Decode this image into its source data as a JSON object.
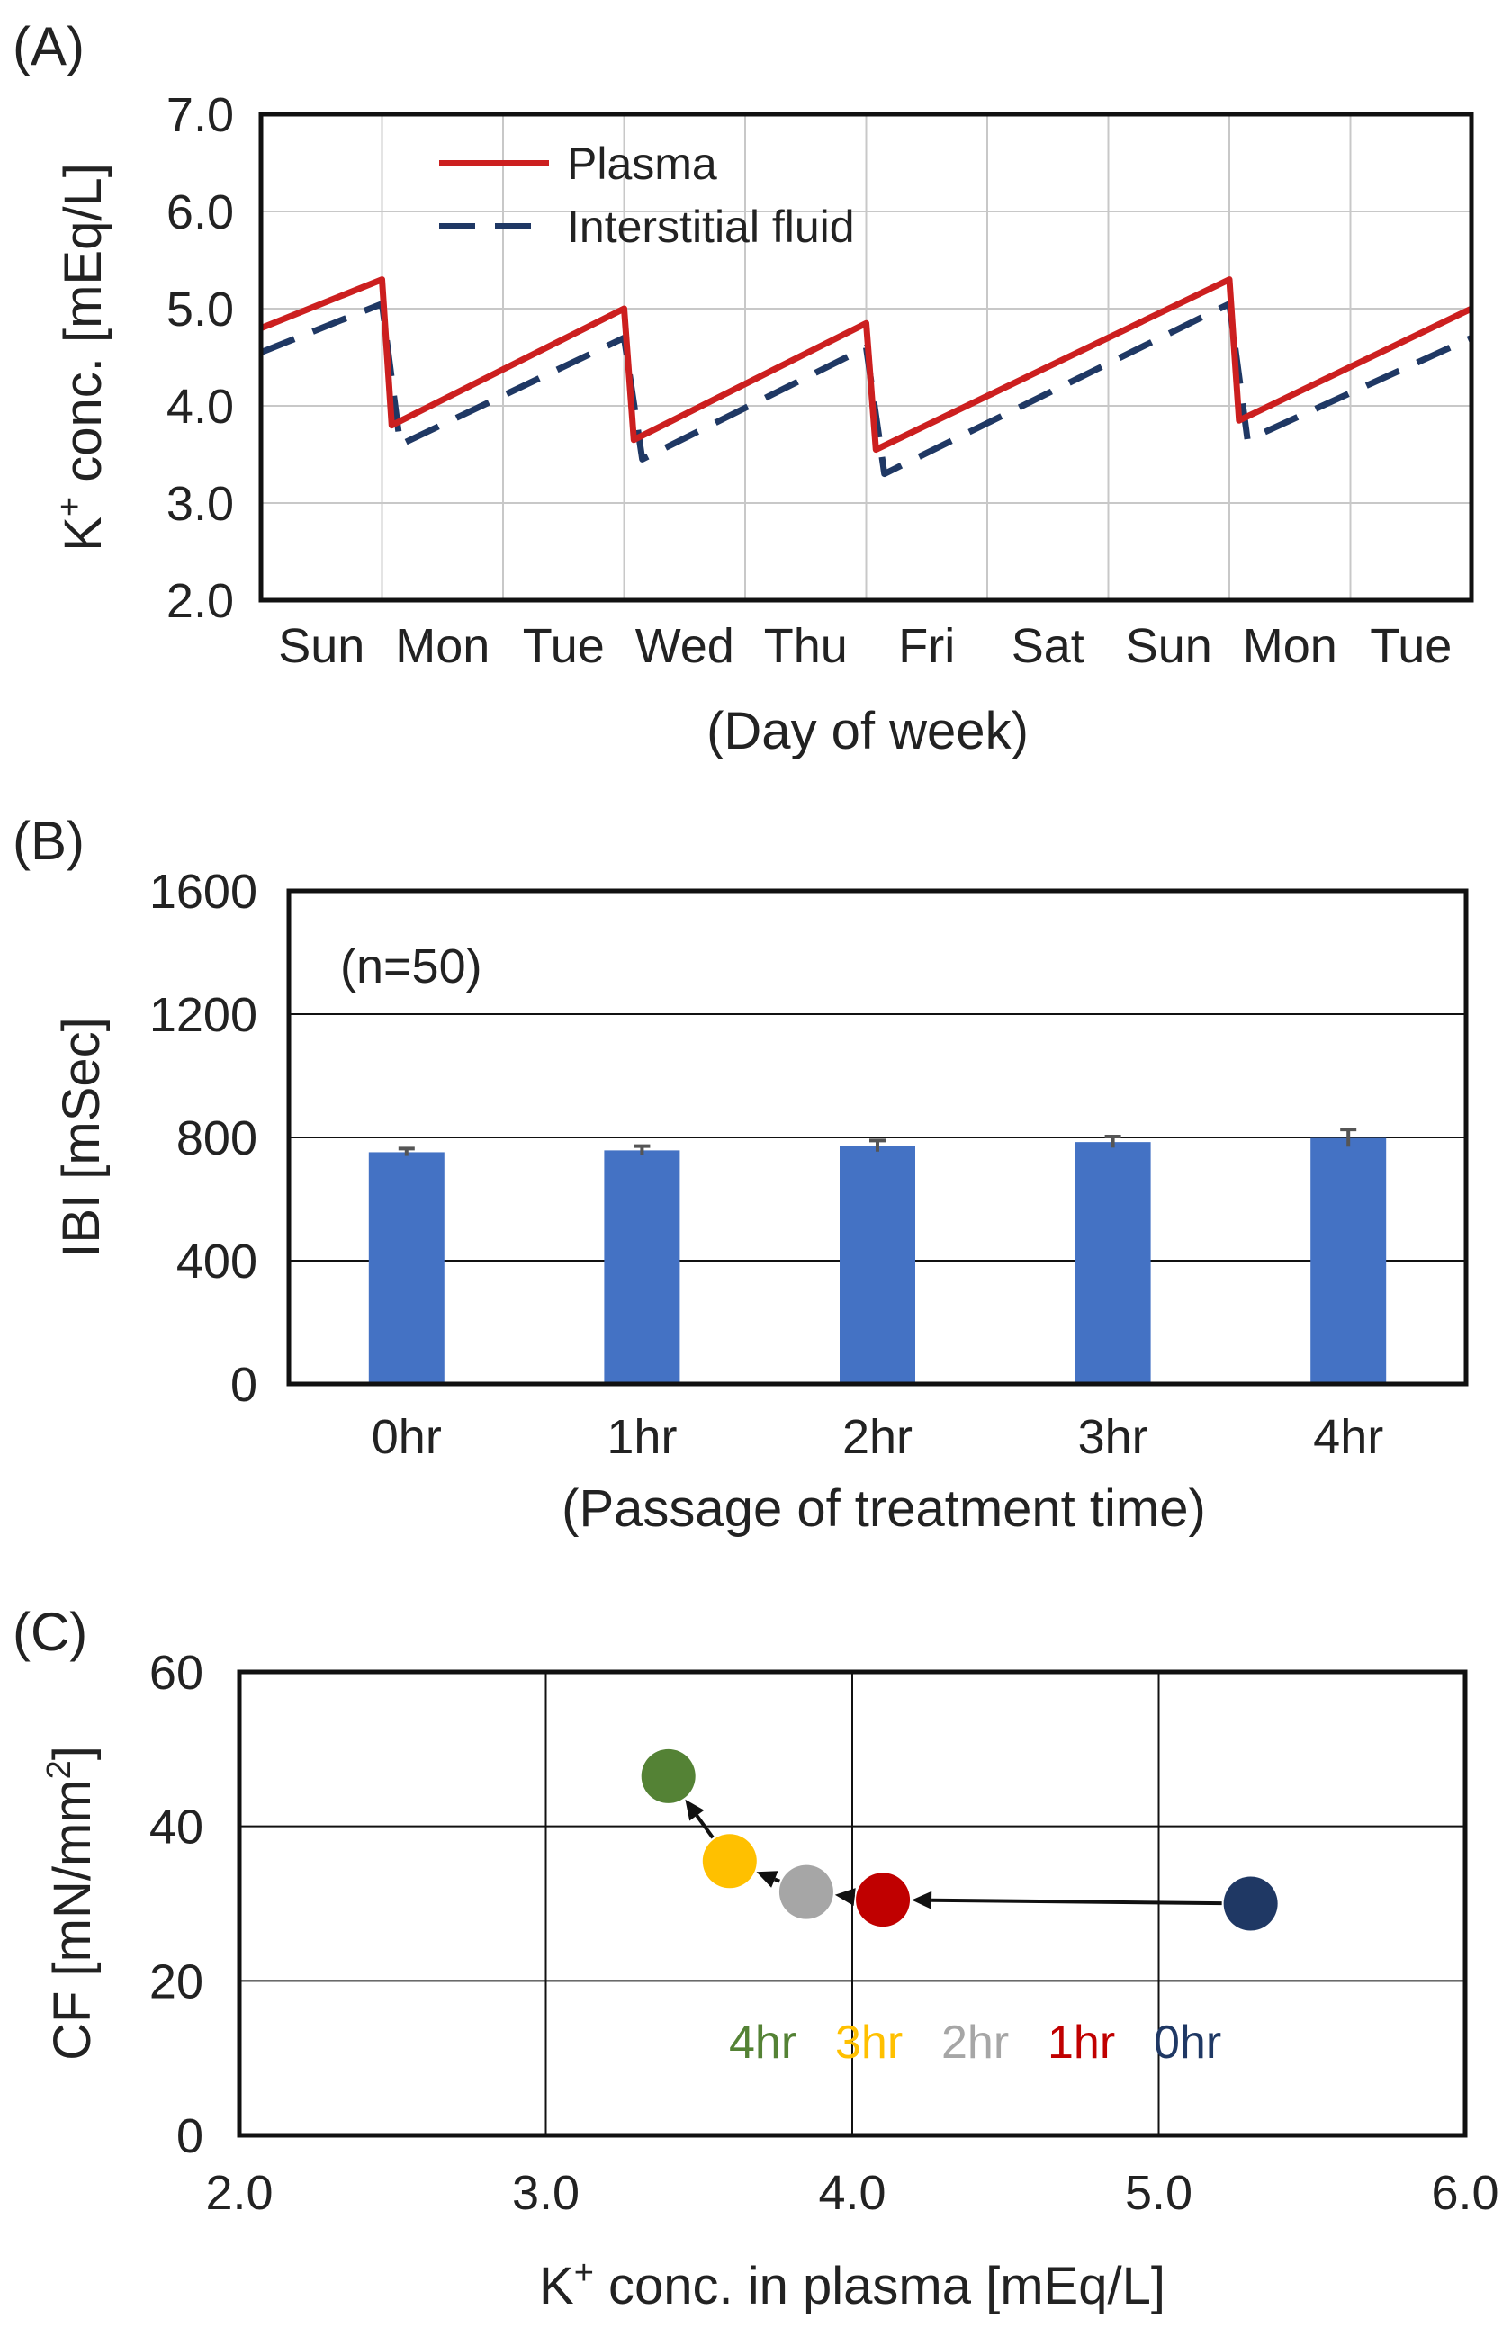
{
  "colors": {
    "plasma": "#cc1f1f",
    "interstitial": "#1f3864",
    "bar": "#4472c4",
    "error_bar": "#555555",
    "grid": "#c8c8c8",
    "frame": "#111111",
    "pt_0hr": "#1f3864",
    "pt_1hr": "#c00000",
    "pt_2hr": "#a6a6a6",
    "pt_3hr": "#ffc000",
    "pt_4hr": "#548235",
    "arrow": "#111111"
  },
  "chart_data": [
    {
      "id": "A",
      "panel_label": "(A)",
      "type": "line",
      "xlabel": "(Day of week)",
      "ylabel_parts": [
        "K",
        "+",
        " conc. [mEq/L]"
      ],
      "categories": [
        "Sun",
        "Mon",
        "Tue",
        "Wed",
        "Thu",
        "Fri",
        "Sat",
        "Sun",
        "Mon",
        "Tue"
      ],
      "xlim": [
        0,
        10
      ],
      "ylim": [
        2.0,
        7.0
      ],
      "yticks": [
        "2.0",
        "3.0",
        "4.0",
        "5.0",
        "6.0",
        "7.0"
      ],
      "grid": true,
      "legend_position": "top-left",
      "series": [
        {
          "name": "Plasma",
          "style": "solid",
          "x": [
            0,
            1,
            1.08,
            3,
            3.08,
            5,
            5.08,
            8,
            8.08,
            10
          ],
          "y": [
            4.8,
            5.3,
            3.8,
            5.0,
            3.65,
            4.85,
            3.55,
            5.3,
            3.85,
            5.0
          ]
        },
        {
          "name": "Interstitial fluid",
          "style": "dashed",
          "x": [
            0,
            1,
            1.15,
            3,
            3.15,
            5,
            5.15,
            8,
            8.15,
            10
          ],
          "y": [
            4.55,
            5.05,
            3.6,
            4.7,
            3.45,
            4.6,
            3.3,
            5.05,
            3.65,
            4.7
          ]
        }
      ]
    },
    {
      "id": "B",
      "panel_label": "(B)",
      "type": "bar",
      "annotation": "(n=50)",
      "xlabel": "(Passage of treatment time)",
      "ylabel": "IBI [mSec]",
      "categories": [
        "0hr",
        "1hr",
        "2hr",
        "3hr",
        "4hr"
      ],
      "values": [
        752,
        758,
        772,
        785,
        798
      ],
      "errors": [
        12,
        14,
        18,
        18,
        28
      ],
      "ylim": [
        0,
        1600
      ],
      "yticks": [
        "0",
        "400",
        "800",
        "1200",
        "1600"
      ],
      "grid": true
    },
    {
      "id": "C",
      "panel_label": "(C)",
      "type": "scatter",
      "xlabel_parts": [
        "K",
        "+",
        " conc. in plasma [mEq/L]"
      ],
      "ylabel_parts": [
        "CF [mN/mm",
        "2",
        "]"
      ],
      "xlim": [
        2.0,
        6.0
      ],
      "ylim": [
        0,
        60
      ],
      "xticks": [
        "2.0",
        "3.0",
        "4.0",
        "5.0",
        "6.0"
      ],
      "yticks": [
        "0",
        "20",
        "40",
        "60"
      ],
      "grid": true,
      "points": [
        {
          "label": "0hr",
          "x": 5.3,
          "y": 30.0
        },
        {
          "label": "1hr",
          "x": 4.1,
          "y": 30.5
        },
        {
          "label": "2hr",
          "x": 3.85,
          "y": 31.5
        },
        {
          "label": "3hr",
          "x": 3.6,
          "y": 35.5
        },
        {
          "label": "4hr",
          "x": 3.4,
          "y": 46.5
        }
      ],
      "legend_order": [
        "4hr",
        "3hr",
        "2hr",
        "1hr",
        "0hr"
      ]
    }
  ]
}
